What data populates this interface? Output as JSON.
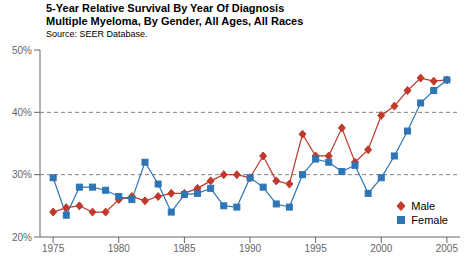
{
  "chart_data": {
    "type": "line",
    "title": "5-Year Relative Survival By Year Of Diagnosis\nMultiple Myeloma, By Gender, All Ages, All Races",
    "subtitle": "Source: SEER Database.",
    "x": [
      1975,
      1976,
      1977,
      1978,
      1979,
      1980,
      1981,
      1982,
      1983,
      1984,
      1985,
      1986,
      1987,
      1988,
      1989,
      1990,
      1991,
      1992,
      1993,
      1994,
      1995,
      1996,
      1997,
      1998,
      1999,
      2000,
      2001,
      2002,
      2003,
      2004,
      2005
    ],
    "series": [
      {
        "name": "Male",
        "color": "#c0392b",
        "marker": "diamond",
        "values": [
          0.24,
          0.247,
          0.25,
          0.24,
          0.24,
          0.26,
          0.265,
          0.258,
          0.265,
          0.27,
          0.27,
          0.278,
          0.29,
          0.3,
          0.3,
          0.295,
          0.33,
          0.29,
          0.285,
          0.365,
          0.33,
          0.33,
          0.375,
          0.32,
          0.34,
          0.395,
          0.41,
          0.435,
          0.455,
          0.45,
          0.452
        ]
      },
      {
        "name": "Female",
        "color": "#2e75b6",
        "marker": "square",
        "values": [
          0.295,
          0.235,
          0.28,
          0.28,
          0.275,
          0.265,
          0.26,
          0.32,
          0.285,
          0.24,
          0.268,
          0.27,
          0.278,
          0.25,
          0.248,
          0.295,
          0.28,
          0.253,
          0.248,
          0.3,
          0.325,
          0.32,
          0.305,
          0.315,
          0.27,
          0.295,
          0.33,
          0.37,
          0.415,
          0.435,
          0.452
        ]
      }
    ],
    "xlim": [
      1974,
      2006
    ],
    "xticks": [
      1975,
      1980,
      1985,
      1990,
      1995,
      2000,
      2005
    ],
    "ylim": [
      0.2,
      0.5
    ],
    "yticks": [
      {
        "value": 0.2,
        "label": "20%"
      },
      {
        "value": 0.3,
        "label": "30%"
      },
      {
        "value": 0.4,
        "label": "40%"
      },
      {
        "value": 0.5,
        "label": "50%"
      }
    ],
    "reference_lines": [
      0.3,
      0.4
    ],
    "legend": "lower right"
  }
}
